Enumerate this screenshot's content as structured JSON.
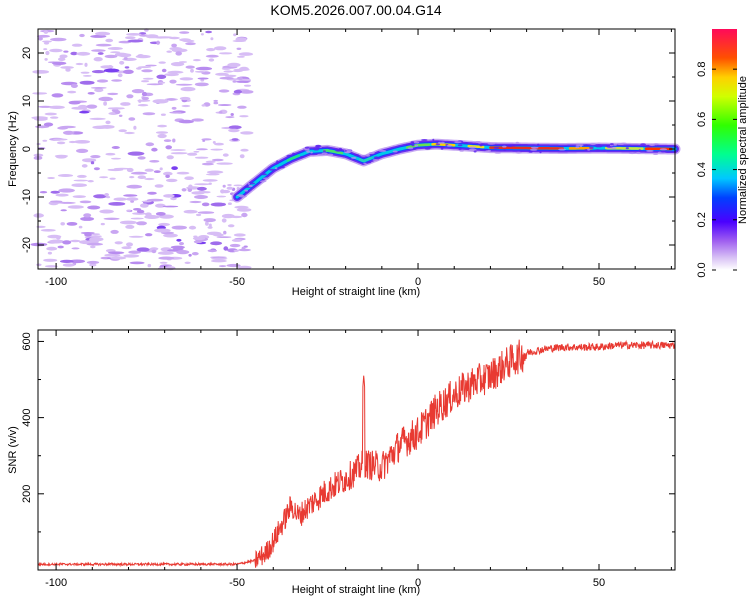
{
  "title": "KOM5.2026.007.00.04.G14",
  "chart_data": [
    {
      "type": "heatmap",
      "name": "spectrogram",
      "xlabel": "Height of straight line (km)",
      "ylabel": "Frequency (Hz)",
      "xlim": [
        -105,
        71
      ],
      "ylim": [
        -25,
        25
      ],
      "xticks": [
        "-100",
        "-50",
        "0",
        "50"
      ],
      "xtick_values": [
        -100,
        -50,
        0,
        50
      ],
      "yticks": [
        "-20",
        "-10",
        "0",
        "10",
        "20"
      ],
      "ytick_values": [
        -20,
        -10,
        0,
        10,
        20
      ],
      "ridge": {
        "x": [
          -50,
          -45,
          -40,
          -35,
          -30,
          -25,
          -20,
          -15,
          -10,
          -5,
          0,
          5,
          10,
          20,
          30,
          40,
          50,
          60,
          70
        ],
        "frequency": [
          -10,
          -7,
          -4,
          -2,
          -0.5,
          -0.3,
          -1,
          -2.5,
          -1,
          0,
          0.8,
          1,
          0.8,
          0.3,
          0.2,
          0.1,
          0.2,
          0.1,
          0
        ]
      },
      "noise_region_x": [
        -105,
        -50
      ],
      "colorbar": {
        "label": "Normalized spectral amplitude",
        "ticks": [
          "0.0",
          "0.2",
          "0.4",
          "0.6",
          "0.8"
        ],
        "tick_values": [
          0,
          0.2,
          0.4,
          0.6,
          0.8
        ],
        "range": [
          0,
          0.96
        ]
      }
    },
    {
      "type": "line",
      "name": "snr",
      "xlabel": "Height of straight line (km)",
      "ylabel": "SNR (v/v)",
      "xlim": [
        -105,
        71
      ],
      "ylim": [
        0,
        630
      ],
      "xticks": [
        "-100",
        "-50",
        "0",
        "50"
      ],
      "xtick_values": [
        -100,
        -50,
        0,
        50
      ],
      "yticks": [
        "200",
        "400",
        "600"
      ],
      "ytick_values": [
        200,
        400,
        600
      ],
      "color": "#e83a32",
      "series": [
        {
          "name": "SNR",
          "x": [
            -105,
            -50,
            -45,
            -42,
            -40,
            -37,
            -35,
            -33,
            -30,
            -25,
            -20,
            -17,
            -15,
            -10,
            -5,
            0,
            5,
            10,
            15,
            20,
            25,
            30,
            35,
            40,
            45,
            50,
            55,
            60,
            65,
            70
          ],
          "values": [
            15,
            15,
            25,
            45,
            75,
            130,
            170,
            140,
            170,
            210,
            240,
            260,
            280,
            270,
            330,
            360,
            420,
            460,
            490,
            510,
            545,
            570,
            580,
            585,
            585,
            585,
            590,
            590,
            590,
            590
          ]
        }
      ],
      "spike": {
        "x": -15,
        "value": 510
      }
    }
  ]
}
